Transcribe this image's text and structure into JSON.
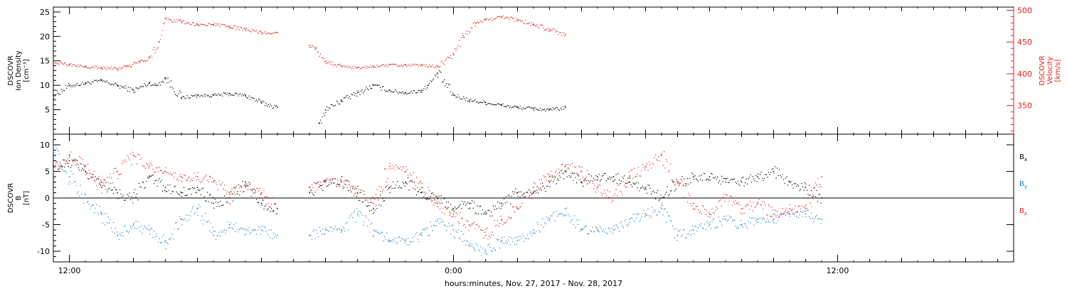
{
  "colors": {
    "black": "#000000",
    "red": "#e0201b",
    "blue": "#1f7fd4",
    "axis": "#000000"
  },
  "xaxis": {
    "label": "hours:minutes, Nov. 27, 2017 - Nov. 28, 2017",
    "range_hours": [
      -12.5,
      17.5
    ],
    "major_ticks": [
      -12,
      0,
      12
    ],
    "major_labels": [
      "12:00",
      "0:00",
      "12:00"
    ]
  },
  "chart_data": [
    {
      "type": "scatter",
      "panel": "top",
      "ylabel": [
        "DSCOVR",
        "Ion Density",
        "[cm⁻³]"
      ],
      "ylim": [
        0,
        26
      ],
      "yticks": [
        5,
        10,
        15,
        20,
        25
      ],
      "y2label": [
        "DSCOVR",
        "Velocity",
        "[km/s]"
      ],
      "y2lim": [
        305,
        505
      ],
      "y2ticks": [
        350,
        400,
        450,
        500
      ],
      "series": [
        {
          "axis": "left",
          "color": "black",
          "x": [
            -12.5,
            -12.0,
            -11.5,
            -11.0,
            -10.5,
            -10.0,
            -9.5,
            -9.3,
            -9.0,
            -8.5,
            -8.0,
            -7.5,
            -7.0,
            -6.5,
            -6.0,
            -5.5,
            -4.2,
            -4.0,
            -3.5,
            -3.0,
            -2.5,
            -2.0,
            -1.5,
            -1.0,
            -0.8,
            -0.5,
            0.0,
            0.5,
            1.0,
            1.5,
            2.0,
            2.5,
            3.0,
            3.5
          ],
          "y": [
            8,
            10,
            10.5,
            11,
            10,
            9,
            10.5,
            10,
            11.5,
            7.5,
            8,
            8,
            8.3,
            8,
            6.5,
            5.5,
            2.2,
            5,
            7,
            8.5,
            10,
            9,
            8.5,
            9,
            10,
            12.5,
            8,
            7,
            6.5,
            6,
            5.5,
            5.3,
            5,
            5.5
          ]
        },
        {
          "axis": "right",
          "color": "red",
          "x": [
            -12.5,
            -12.0,
            -11.5,
            -11.0,
            -10.5,
            -10.2,
            -9.8,
            -9.5,
            -9.2,
            -9.0,
            -8.5,
            -8.0,
            -7.5,
            -7.0,
            -6.5,
            -6.0,
            -5.5,
            -4.5,
            -4.3,
            -4.0,
            -3.5,
            -3.0,
            -2.5,
            -2.0,
            -1.5,
            -1.0,
            -0.5,
            0.0,
            0.3,
            0.7,
            1.0,
            1.5,
            2.0,
            2.5,
            3.0,
            3.5
          ],
          "y": [
            418,
            415,
            412,
            410,
            408,
            412,
            420,
            425,
            450,
            487,
            482,
            478,
            478,
            475,
            470,
            465,
            465,
            445,
            440,
            420,
            412,
            410,
            412,
            414,
            414,
            414,
            412,
            430,
            460,
            480,
            485,
            490,
            485,
            478,
            470,
            462
          ]
        }
      ]
    },
    {
      "type": "scatter",
      "panel": "bottom",
      "ylabel": [
        "DSCOVR",
        "B",
        "[nT]"
      ],
      "ylim": [
        -12,
        12
      ],
      "yticks": [
        -10,
        -5,
        0,
        5,
        10
      ],
      "zero_line": true,
      "legend": [
        {
          "label": "B",
          "sub": "x",
          "color": "black"
        },
        {
          "label": "B",
          "sub": "y",
          "color": "blue"
        },
        {
          "label": "B",
          "sub": "z",
          "color": "red"
        }
      ],
      "series": [
        {
          "name": "Bx",
          "color": "black",
          "x": [
            -12.5,
            -12.0,
            -11.5,
            -11.0,
            -10.5,
            -10.0,
            -9.5,
            -9.0,
            -8.5,
            -8.0,
            -7.5,
            -7.0,
            -6.5,
            -6.0,
            -5.5,
            -4.5,
            -4.0,
            -3.5,
            -3.0,
            -2.5,
            -2.0,
            -1.5,
            -1.0,
            -0.5,
            0.0,
            0.5,
            1.0,
            1.5,
            2.0,
            2.5,
            3.0,
            3.5,
            4.0,
            4.5,
            5.0,
            5.5,
            6.0,
            6.5,
            7.0,
            7.5,
            8.0,
            8.5,
            9.0,
            9.5,
            10.0,
            10.5,
            11.0,
            11.5
          ],
          "y": [
            6,
            7,
            5,
            3,
            1,
            0,
            4,
            2,
            1,
            2,
            -1,
            0,
            3,
            -1,
            -2,
            1,
            3,
            3,
            1,
            -2,
            2,
            3,
            1,
            0,
            -2,
            -1,
            -3,
            -1,
            1,
            1,
            3,
            5,
            3,
            4,
            4,
            3,
            2,
            0,
            3,
            4,
            4,
            3,
            3,
            4,
            5,
            3,
            2,
            0
          ]
        },
        {
          "name": "By",
          "color": "blue",
          "x": [
            -12.5,
            -12.0,
            -11.5,
            -11.0,
            -10.5,
            -10.0,
            -9.5,
            -9.0,
            -8.5,
            -8.0,
            -7.5,
            -7.0,
            -6.5,
            -6.0,
            -5.5,
            -4.5,
            -4.0,
            -3.5,
            -3.0,
            -2.5,
            -2.0,
            -1.5,
            -1.0,
            -0.5,
            0.0,
            0.5,
            1.0,
            1.5,
            2.0,
            2.5,
            3.0,
            3.5,
            4.0,
            4.5,
            5.0,
            5.5,
            6.0,
            6.5,
            7.0,
            7.5,
            8.0,
            8.5,
            9.0,
            9.5,
            10.0,
            10.5,
            11.0,
            11.5
          ],
          "y": [
            9,
            4,
            0,
            -3,
            -7,
            -5,
            -6,
            -8,
            -4,
            -2,
            -7,
            -5,
            -6,
            -6,
            -7,
            -7,
            -6,
            -6,
            -3,
            -6,
            -8,
            -8,
            -7,
            -4,
            -6,
            -9,
            -10,
            -8,
            -8,
            -6,
            -4,
            -2,
            -6,
            -6,
            -6,
            -4,
            -3,
            -2,
            -7,
            -6,
            -5,
            -4,
            -5,
            -4,
            -4,
            -3,
            -3,
            -4
          ]
        },
        {
          "name": "Bz",
          "color": "red",
          "x": [
            -12.5,
            -12.0,
            -11.5,
            -11.0,
            -10.5,
            -10.0,
            -9.5,
            -9.0,
            -8.5,
            -8.0,
            -7.5,
            -7.0,
            -6.5,
            -6.0,
            -5.5,
            -4.5,
            -4.0,
            -3.5,
            -3.0,
            -2.5,
            -2.0,
            -1.5,
            -1.0,
            -0.5,
            0.0,
            0.5,
            1.0,
            1.5,
            2.0,
            2.5,
            3.0,
            3.5,
            4.0,
            4.5,
            5.0,
            5.5,
            6.0,
            6.5,
            7.0,
            7.5,
            8.0,
            8.5,
            9.0,
            9.5,
            10.0,
            10.5,
            11.0,
            11.5
          ],
          "y": [
            5,
            8,
            6,
            2,
            5,
            8,
            6,
            5,
            4,
            4,
            3,
            1,
            2,
            1,
            -2,
            2,
            3,
            3,
            1,
            -1,
            6,
            5,
            2,
            -1,
            -3,
            -5,
            -7,
            -4,
            -2,
            2,
            4,
            6,
            5,
            2,
            0,
            4,
            6,
            8,
            3,
            -1,
            -3,
            0,
            -2,
            -1,
            -3,
            -2,
            -2,
            4
          ]
        }
      ]
    }
  ]
}
